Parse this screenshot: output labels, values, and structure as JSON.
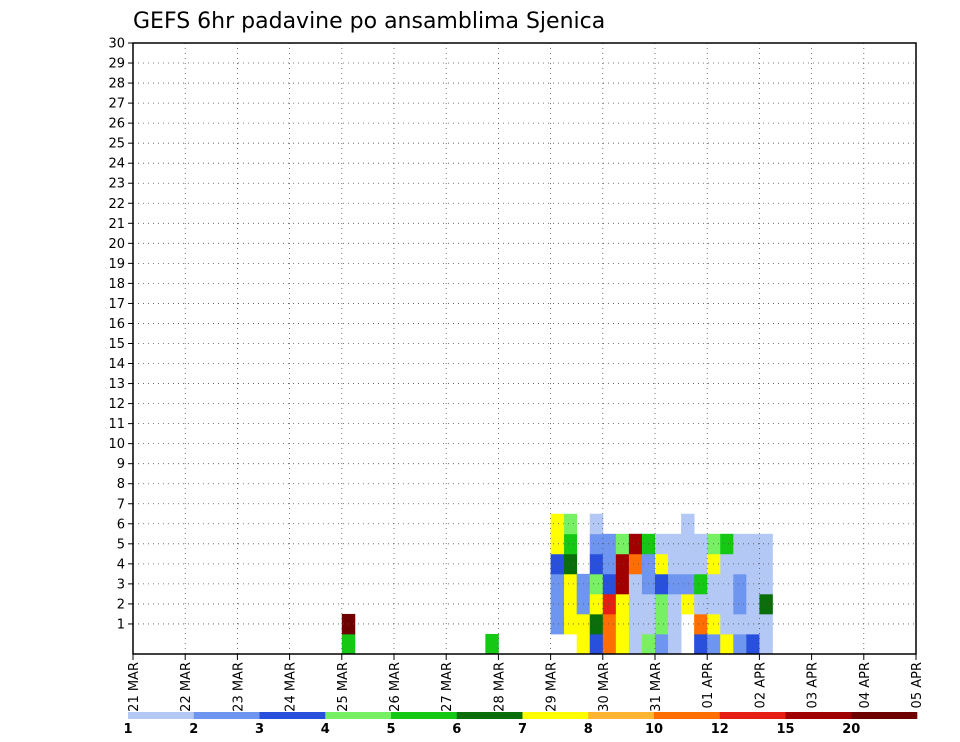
{
  "chart_data": {
    "type": "heatmap",
    "title": "GEFS 6hr padavine po ansamblima Sjenica",
    "xlabel": "",
    "ylabel": "",
    "x_start": "2025-03-21",
    "x_step_hours": 6,
    "x_tick_labels": [
      "21 MAR",
      "22 MAR",
      "23 MAR",
      "24 MAR",
      "25 MAR",
      "26 MAR",
      "27 MAR",
      "28 MAR",
      "29 MAR",
      "30 MAR",
      "31 MAR",
      "01 APR",
      "02 APR",
      "03 APR",
      "04 APR",
      "05 APR"
    ],
    "y_tick_labels": [
      "1",
      "2",
      "3",
      "4",
      "5",
      "6",
      "7",
      "8",
      "9",
      "10",
      "11",
      "12",
      "13",
      "14",
      "15",
      "16",
      "17",
      "18",
      "19",
      "20",
      "21",
      "22",
      "23",
      "24",
      "25",
      "26",
      "27",
      "28",
      "29",
      "30"
    ],
    "ylim": [
      0,
      30
    ],
    "grid": true,
    "colorbar": {
      "labels": [
        "1",
        "2",
        "3",
        "4",
        "5",
        "6",
        "7",
        "8",
        "10",
        "12",
        "15",
        "20"
      ],
      "colors": [
        "#b4c8f5",
        "#6e96f0",
        "#2850dc",
        "#78f064",
        "#14c814",
        "#0a6e0a",
        "#ffff00",
        "#ffb432",
        "#ff6e00",
        "#e61e14",
        "#a00000",
        "#6e0000"
      ]
    },
    "cells": [
      [
        16,
        0,
        4
      ],
      [
        16,
        1,
        11
      ],
      [
        27,
        0,
        4
      ],
      [
        34,
        0,
        6
      ],
      [
        35,
        0,
        2
      ],
      [
        33,
        1,
        6
      ],
      [
        33,
        2,
        6
      ],
      [
        33,
        3,
        6
      ],
      [
        33,
        4,
        5
      ],
      [
        33,
        5,
        4
      ],
      [
        33,
        6,
        3
      ],
      [
        34,
        1,
        6
      ],
      [
        34,
        2,
        1
      ],
      [
        34,
        3,
        1
      ],
      [
        35,
        1,
        5
      ],
      [
        35,
        2,
        6
      ],
      [
        35,
        3,
        3
      ],
      [
        35,
        4,
        2
      ],
      [
        35,
        5,
        1
      ],
      [
        35,
        6,
        0
      ],
      [
        36,
        0,
        8
      ],
      [
        36,
        1,
        8
      ],
      [
        36,
        2,
        9
      ],
      [
        36,
        3,
        2
      ],
      [
        36,
        4,
        1
      ],
      [
        36,
        5,
        1
      ],
      [
        37,
        0,
        6
      ],
      [
        37,
        1,
        6
      ],
      [
        37,
        2,
        6
      ],
      [
        37,
        3,
        10
      ],
      [
        37,
        4,
        10
      ],
      [
        37,
        5,
        3
      ],
      [
        38,
        0,
        0
      ],
      [
        38,
        1,
        0
      ],
      [
        38,
        2,
        0
      ],
      [
        38,
        3,
        0
      ],
      [
        38,
        4,
        8
      ],
      [
        38,
        5,
        10
      ],
      [
        39,
        0,
        3
      ],
      [
        39,
        1,
        0
      ],
      [
        39,
        2,
        0
      ],
      [
        39,
        3,
        1
      ],
      [
        39,
        4,
        1
      ],
      [
        39,
        5,
        4
      ],
      [
        32,
        1,
        1
      ],
      [
        32,
        2,
        1
      ],
      [
        32,
        3,
        1
      ],
      [
        32,
        4,
        2
      ],
      [
        32,
        5,
        6
      ],
      [
        32,
        6,
        6
      ],
      [
        40,
        0,
        1
      ],
      [
        40,
        1,
        3
      ],
      [
        40,
        2,
        3
      ],
      [
        40,
        3,
        2
      ],
      [
        40,
        4,
        6
      ],
      [
        40,
        5,
        0
      ],
      [
        41,
        0,
        0
      ],
      [
        41,
        1,
        0
      ],
      [
        41,
        2,
        0
      ],
      [
        41,
        3,
        1
      ],
      [
        41,
        4,
        0
      ],
      [
        41,
        5,
        0
      ],
      [
        42,
        2,
        6
      ],
      [
        42,
        3,
        1
      ],
      [
        42,
        4,
        0
      ],
      [
        42,
        5,
        0
      ],
      [
        42,
        6,
        0
      ],
      [
        43,
        0,
        2
      ],
      [
        43,
        1,
        8
      ],
      [
        43,
        2,
        0
      ],
      [
        43,
        3,
        4
      ],
      [
        43,
        4,
        0
      ],
      [
        43,
        5,
        0
      ],
      [
        44,
        0,
        1
      ],
      [
        44,
        1,
        6
      ],
      [
        44,
        2,
        0
      ],
      [
        44,
        3,
        0
      ],
      [
        44,
        4,
        6
      ],
      [
        44,
        5,
        3
      ],
      [
        45,
        0,
        6
      ],
      [
        45,
        1,
        0
      ],
      [
        45,
        2,
        0
      ],
      [
        45,
        3,
        0
      ],
      [
        45,
        4,
        0
      ],
      [
        45,
        5,
        4
      ],
      [
        46,
        0,
        1
      ],
      [
        46,
        1,
        0
      ],
      [
        46,
        2,
        1
      ],
      [
        46,
        3,
        1
      ],
      [
        46,
        4,
        0
      ],
      [
        46,
        5,
        0
      ],
      [
        47,
        0,
        2
      ],
      [
        47,
        1,
        0
      ],
      [
        47,
        2,
        0
      ],
      [
        47,
        3,
        0
      ],
      [
        47,
        4,
        0
      ],
      [
        47,
        5,
        0
      ],
      [
        48,
        0,
        0
      ],
      [
        48,
        1,
        0
      ],
      [
        48,
        2,
        5
      ],
      [
        48,
        3,
        0
      ],
      [
        48,
        4,
        0
      ],
      [
        48,
        5,
        0
      ]
    ]
  }
}
